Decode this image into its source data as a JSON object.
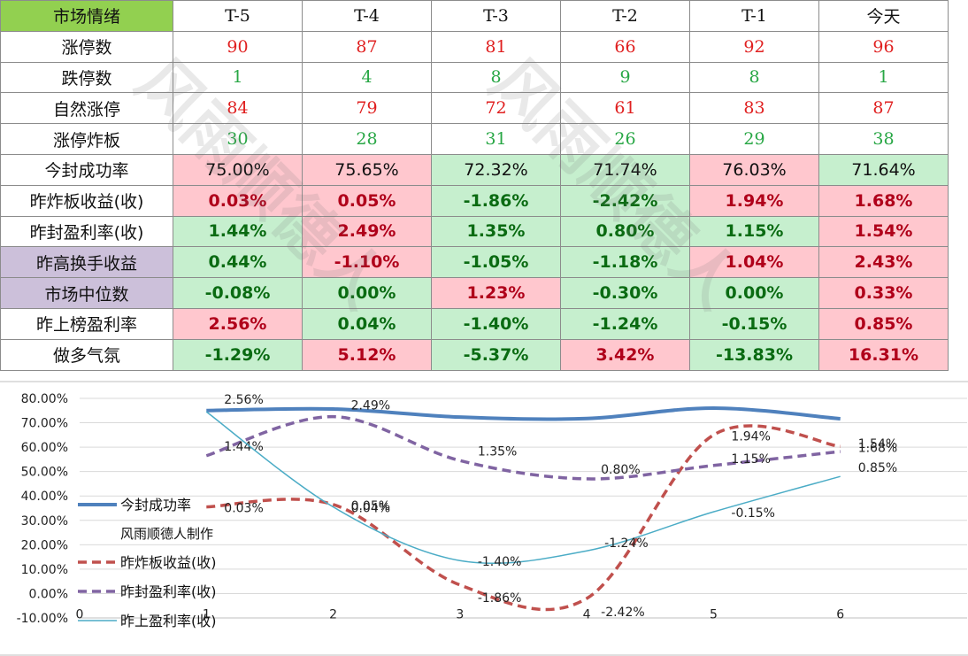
{
  "table": {
    "columns": [
      "市场情绪",
      "T-5",
      "T-4",
      "T-3",
      "T-2",
      "T-1",
      "今天"
    ],
    "rows": [
      {
        "label": "涨停数",
        "values": [
          "90",
          "87",
          "81",
          "66",
          "92",
          "96"
        ]
      },
      {
        "label": "跌停数",
        "values": [
          "1",
          "4",
          "8",
          "9",
          "8",
          "1"
        ]
      },
      {
        "label": "自然涨停",
        "values": [
          "84",
          "79",
          "72",
          "61",
          "83",
          "87"
        ]
      },
      {
        "label": "涨停炸板",
        "values": [
          "30",
          "28",
          "31",
          "26",
          "29",
          "38"
        ]
      },
      {
        "label": "今封成功率",
        "values": [
          "75.00%",
          "75.65%",
          "72.32%",
          "71.74%",
          "76.03%",
          "71.64%"
        ]
      },
      {
        "label": "昨炸板收益(收)",
        "values": [
          "0.03%",
          "0.05%",
          "-1.86%",
          "-2.42%",
          "1.94%",
          "1.68%"
        ]
      },
      {
        "label": "昨封盈利率(收)",
        "values": [
          "1.44%",
          "2.49%",
          "1.35%",
          "0.80%",
          "1.15%",
          "1.54%"
        ]
      },
      {
        "label": "昨高换手收益",
        "values": [
          "0.44%",
          "-1.10%",
          "-1.05%",
          "-1.18%",
          "1.04%",
          "2.43%"
        ]
      },
      {
        "label": "市场中位数",
        "values": [
          "-0.08%",
          "0.00%",
          "1.23%",
          "-0.30%",
          "0.00%",
          "0.33%"
        ]
      },
      {
        "label": "昨上榜盈利率",
        "values": [
          "2.56%",
          "0.04%",
          "-1.40%",
          "-1.24%",
          "-0.15%",
          "0.85%"
        ]
      },
      {
        "label": "做多气氛",
        "values": [
          "-1.29%",
          "5.12%",
          "-5.37%",
          "3.42%",
          "-13.83%",
          "16.31%"
        ]
      }
    ]
  },
  "watermark": "风雨顺德人",
  "chart_data": {
    "type": "line",
    "x": [
      1,
      2,
      3,
      4,
      5,
      6
    ],
    "xlim": [
      0,
      7
    ],
    "ylim": [
      -0.1,
      0.8
    ],
    "y_ticks": [
      "-10.00%",
      "0.00%",
      "10.00%",
      "20.00%",
      "30.00%",
      "40.00%",
      "50.00%",
      "60.00%",
      "70.00%",
      "80.00%"
    ],
    "x_ticks": [
      "0",
      "1",
      "2",
      "3",
      "4",
      "5",
      "6"
    ],
    "legend_position": "left",
    "legend_note": "风雨顺德人制作",
    "series": [
      {
        "name": "今封成功率",
        "color": "#4f81bd",
        "dash": "",
        "width": 4,
        "values": [
          0.75,
          0.7565,
          0.7232,
          0.7174,
          0.7603,
          0.7164
        ],
        "labels": [
          "",
          "",
          "",
          "",
          "",
          ""
        ]
      },
      {
        "name": "昨炸板收益(收)",
        "color": "#c0504d",
        "dash": "10,6",
        "width": 3.5,
        "values": [
          0.355,
          0.365,
          0.035,
          -0.02,
          0.65,
          0.603
        ],
        "labels": [
          "0.03%",
          "0.05%",
          "-1.86%",
          "-2.42%",
          "1.94%",
          "1.68%"
        ]
      },
      {
        "name": "昨封盈利率(收)",
        "color": "#8064a2",
        "dash": "10,6",
        "width": 3.5,
        "values": [
          0.565,
          0.725,
          0.545,
          0.47,
          0.525,
          0.582
        ],
        "labels": [
          "1.44%",
          "2.49%",
          "1.35%",
          "0.80%",
          "1.15%",
          "1.54%"
        ]
      },
      {
        "name": "昨上盈利率(收)",
        "color": "#4bacc6",
        "dash": "",
        "width": 1.5,
        "values": [
          0.745,
          0.355,
          0.135,
          0.175,
          0.335,
          0.48
        ],
        "labels": [
          "2.56%",
          "0.04%",
          "-1.40%",
          "-1.24%",
          "-0.15%",
          "0.85%"
        ]
      }
    ]
  }
}
